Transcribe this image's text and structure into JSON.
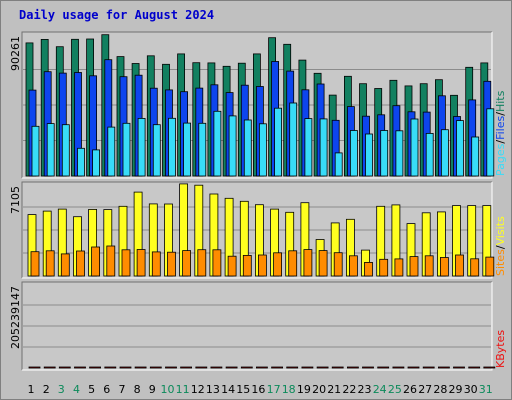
{
  "title": "Daily usage for August 2024",
  "colors": {
    "background": "#c0c0c0",
    "plot_background": "#c8c8c8",
    "grid": "#8c8c8c",
    "hits": "#128060",
    "files": "#0d45ee",
    "pages": "#38dcf8",
    "visits": "#ffff20",
    "sites": "#ff8c00",
    "kbytes": "#ee1010",
    "weekend_label": "#0b8a5a",
    "weekday_label": "#000000"
  },
  "chart_data": [
    {
      "type": "bar",
      "panel": "hits-files-pages",
      "ymax_label": "90261",
      "ylim": [
        0,
        90261
      ],
      "grid": true,
      "legend": {
        "placement": "right",
        "items": [
          "Pages",
          "/",
          "Files",
          "/",
          "Hits"
        ]
      },
      "categories": [
        "1",
        "2",
        "3",
        "4",
        "5",
        "6",
        "7",
        "8",
        "9",
        "10",
        "11",
        "12",
        "13",
        "14",
        "15",
        "16",
        "17",
        "18",
        "19",
        "20",
        "21",
        "22",
        "23",
        "24",
        "25",
        "26",
        "27",
        "28",
        "29",
        "30",
        "31"
      ],
      "weekend_days": [
        3,
        4,
        10,
        11,
        17,
        18,
        24,
        25,
        31
      ],
      "series": [
        {
          "name": "Hits",
          "values": [
            84600,
            86800,
            82200,
            86900,
            87100,
            89800,
            75900,
            71500,
            76400,
            71000,
            77600,
            72000,
            71900,
            69700,
            71700,
            77600,
            87900,
            83700,
            73700,
            65300,
            51400,
            63400,
            58700,
            55600,
            60800,
            57300,
            58700,
            61200,
            51300,
            69100,
            71900
          ]
        },
        {
          "name": "Files",
          "values": [
            54600,
            66300,
            65400,
            65800,
            63700,
            73900,
            63100,
            64100,
            55800,
            54700,
            53600,
            55900,
            58000,
            53000,
            57700,
            56900,
            72800,
            66700,
            54800,
            58500,
            35400,
            44100,
            38000,
            38900,
            44700,
            40800,
            40600,
            51000,
            37800,
            48400,
            60200
          ]
        },
        {
          "name": "Pages",
          "values": [
            31600,
            33300,
            32600,
            17600,
            16600,
            31100,
            33500,
            36600,
            32600,
            36700,
            33600,
            33500,
            41100,
            38200,
            35600,
            33200,
            43100,
            46400,
            36500,
            36300,
            14700,
            28900,
            26700,
            28900,
            28700,
            36200,
            27100,
            29400,
            35200,
            24800,
            42700
          ]
        }
      ]
    },
    {
      "type": "bar",
      "panel": "visits-sites",
      "ymax_label": "7105",
      "ylim": [
        0,
        7105
      ],
      "grid": true,
      "legend": {
        "placement": "right",
        "items": [
          "Sites",
          "/",
          "Visits"
        ]
      },
      "categories": [
        "1",
        "2",
        "3",
        "4",
        "5",
        "6",
        "7",
        "8",
        "9",
        "10",
        "11",
        "12",
        "13",
        "14",
        "15",
        "16",
        "17",
        "18",
        "19",
        "20",
        "21",
        "22",
        "23",
        "24",
        "25",
        "26",
        "27",
        "28",
        "29",
        "30",
        "31"
      ],
      "series": [
        {
          "name": "Visits",
          "values": [
            4740,
            5010,
            5170,
            4580,
            5140,
            5130,
            5380,
            6480,
            5570,
            5560,
            7110,
            7010,
            6330,
            6000,
            5770,
            5510,
            5170,
            4920,
            5660,
            2820,
            4100,
            4380,
            2000,
            5380,
            5490,
            4050,
            4880,
            4950,
            5440,
            5440,
            5440
          ]
        },
        {
          "name": "Sites",
          "values": [
            1880,
            1950,
            1710,
            1930,
            2240,
            2320,
            2020,
            2050,
            1860,
            1840,
            1960,
            2030,
            2020,
            1530,
            1590,
            1620,
            1790,
            1950,
            2040,
            1960,
            1800,
            1560,
            1050,
            1290,
            1320,
            1500,
            1560,
            1430,
            1620,
            1330,
            1460
          ]
        }
      ]
    },
    {
      "type": "bar",
      "panel": "kbytes",
      "ymax_label": "205239147",
      "ylim": [
        0,
        205239147
      ],
      "grid": true,
      "legend": {
        "placement": "right",
        "items": [
          "KBytes"
        ]
      },
      "categories": [
        "1",
        "2",
        "3",
        "4",
        "5",
        "6",
        "7",
        "8",
        "9",
        "10",
        "11",
        "12",
        "13",
        "14",
        "15",
        "16",
        "17",
        "18",
        "19",
        "20",
        "21",
        "22",
        "23",
        "24",
        "25",
        "26",
        "27",
        "28",
        "29",
        "30",
        "31"
      ],
      "series": [
        {
          "name": "KBytes",
          "values": [
            110100,
            161700,
            138500,
            202000,
            197700,
            177800,
            89500,
            130100,
            98800,
            102000,
            53100,
            31200,
            33500,
            69800,
            67800,
            69300,
            122200,
            105400,
            81800,
            56100,
            88900,
            76000,
            55000,
            67900,
            130400,
            68900,
            38000,
            35000,
            28700,
            44200,
            50000
          ]
        }
      ]
    }
  ]
}
